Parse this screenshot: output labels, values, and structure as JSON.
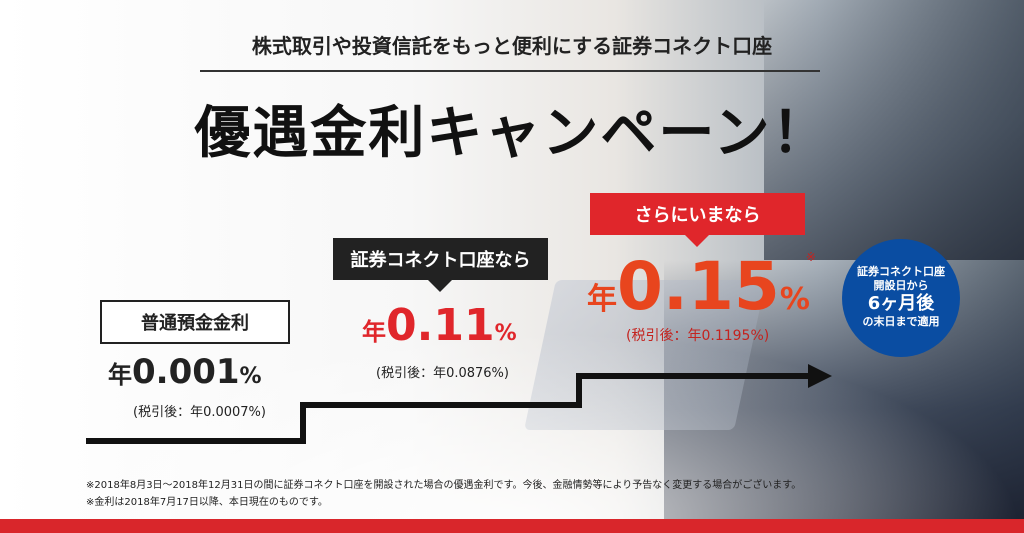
{
  "header": {
    "subtitle": "株式取引や投資信託をもっと便利にする証券コネクト口座",
    "title": "優遇金利キャンペーン！"
  },
  "tiers": [
    {
      "label": "普通預金金利",
      "prefix": "年",
      "rate": "0.001",
      "unit": "%",
      "after_tax": "(税引後：年0.0007%)"
    },
    {
      "label": "証券コネクト口座なら",
      "prefix": "年",
      "rate": "0.11",
      "unit": "%",
      "after_tax": "(税引後：年0.0876%)"
    },
    {
      "label": "さらにいまなら",
      "prefix": "年",
      "rate": "0.15",
      "unit": "%",
      "after_tax": "(税引後：年0.1195%)",
      "note_mark": "※"
    }
  ],
  "badge": {
    "line1": "証券コネクト口座",
    "line2": "開設日から",
    "line3": "6ヶ月後",
    "line4": "の末日まで適用"
  },
  "footnotes": [
    "※2018年8月3日～2018年12月31日の間に証券コネクト口座を開設された場合の優遇金利です。今後、金融情勢等により予告なく変更する場合がございます。",
    "※金利は2018年7月17日以降、本日現在のものです。"
  ],
  "colors": {
    "accent_red": "#e0262b",
    "badge_blue": "#0a4da2",
    "dark": "#222222"
  }
}
